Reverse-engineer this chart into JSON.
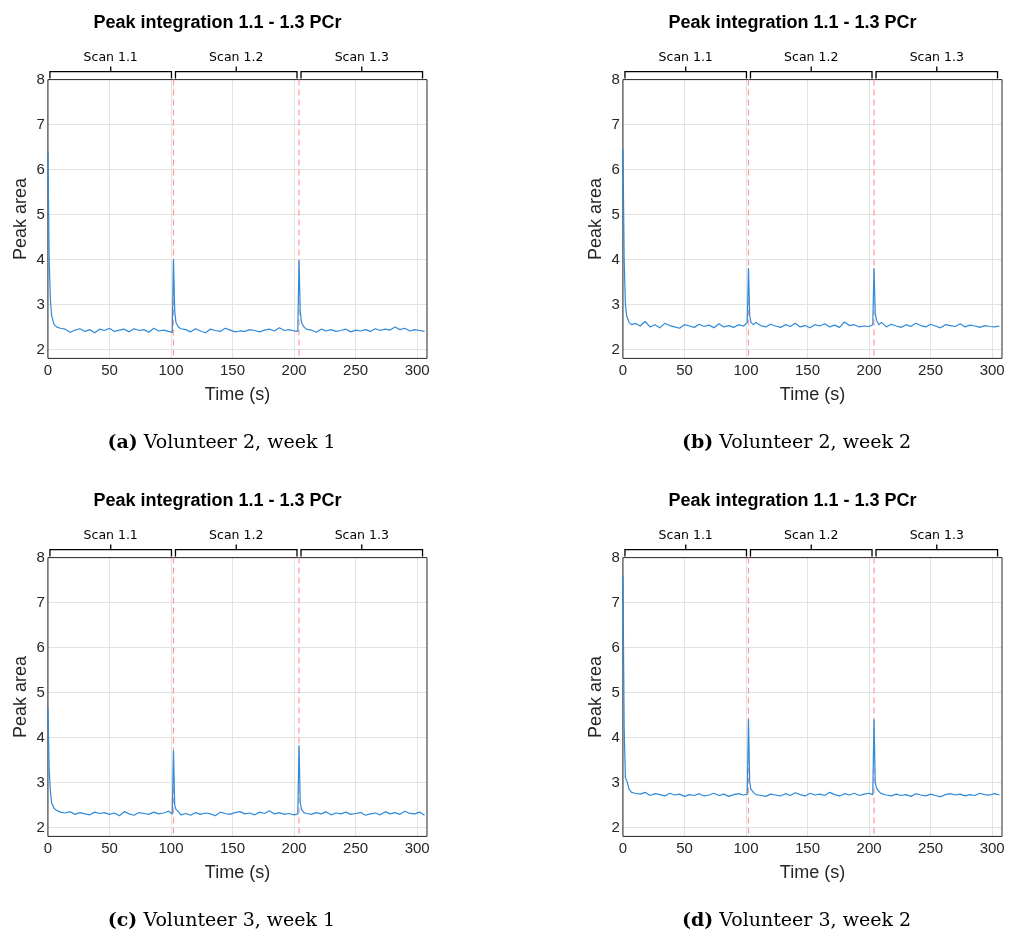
{
  "chart_data": [
    {
      "type": "line",
      "title": "Peak integration 1.1 - 1.3 PCr",
      "xlabel": "Time (s)",
      "ylabel": "Peak area",
      "xlim": [
        0,
        308
      ],
      "ylim": [
        1.8,
        8
      ],
      "xticks": [
        0,
        50,
        100,
        150,
        200,
        250,
        300
      ],
      "yticks": [
        2,
        3,
        4,
        5,
        6,
        7,
        8
      ],
      "grid": true,
      "x": [
        0,
        1,
        2,
        3,
        5,
        7,
        10,
        14,
        18,
        22,
        26,
        30,
        34,
        38,
        42,
        46,
        50,
        54,
        58,
        62,
        66,
        70,
        74,
        78,
        82,
        86,
        90,
        94,
        98,
        101,
        102,
        103,
        104,
        106,
        108,
        112,
        116,
        120,
        124,
        128,
        132,
        136,
        140,
        144,
        148,
        152,
        156,
        160,
        164,
        168,
        172,
        176,
        180,
        184,
        188,
        192,
        196,
        200,
        203,
        204,
        205,
        206,
        208,
        210,
        214,
        218,
        222,
        226,
        230,
        234,
        238,
        242,
        246,
        250,
        254,
        258,
        262,
        266,
        270,
        274,
        278,
        282,
        286,
        290,
        294,
        298,
        302,
        306
      ],
      "series": [
        {
          "color": "#2f8ad8",
          "values": [
            6.4,
            4.0,
            3.1,
            2.75,
            2.55,
            2.5,
            2.47,
            2.45,
            2.38,
            2.43,
            2.46,
            2.4,
            2.44,
            2.37,
            2.45,
            2.42,
            2.47,
            2.4,
            2.43,
            2.45,
            2.39,
            2.46,
            2.42,
            2.44,
            2.38,
            2.47,
            2.41,
            2.43,
            2.4,
            2.38,
            4.0,
            2.85,
            2.6,
            2.5,
            2.46,
            2.44,
            2.39,
            2.46,
            2.41,
            2.37,
            2.45,
            2.42,
            2.4,
            2.47,
            2.43,
            2.39,
            2.41,
            2.4,
            2.44,
            2.42,
            2.39,
            2.43,
            2.45,
            2.41,
            2.48,
            2.42,
            2.44,
            2.41,
            2.4,
            3.98,
            2.85,
            2.6,
            2.5,
            2.45,
            2.43,
            2.38,
            2.45,
            2.41,
            2.44,
            2.4,
            2.42,
            2.45,
            2.39,
            2.43,
            2.41,
            2.44,
            2.4,
            2.46,
            2.42,
            2.45,
            2.43,
            2.5,
            2.44,
            2.47,
            2.41,
            2.44,
            2.42,
            2.4
          ]
        }
      ],
      "ref_lines": [
        {
          "axis": "x",
          "value": 102,
          "color": "#ff9999",
          "line_style": "dashed"
        },
        {
          "axis": "x",
          "value": 204,
          "color": "#ff9999",
          "line_style": "dashed"
        }
      ],
      "annotations": [
        {
          "text": "Scan 1.1",
          "x": 51
        },
        {
          "text": "Scan 1.2",
          "x": 153
        },
        {
          "text": "Scan 1.3",
          "x": 255
        },
        "(a) Volunteer 2, week 1"
      ]
    },
    {
      "type": "line",
      "title": "Peak integration 1.1 - 1.3 PCr",
      "xlabel": "Time (s)",
      "ylabel": "Peak area",
      "xlim": [
        0,
        308
      ],
      "ylim": [
        1.8,
        8
      ],
      "xticks": [
        0,
        50,
        100,
        150,
        200,
        250,
        300
      ],
      "yticks": [
        2,
        3,
        4,
        5,
        6,
        7,
        8
      ],
      "grid": true,
      "x": [
        0,
        1,
        2,
        3,
        5,
        7,
        10,
        14,
        18,
        22,
        26,
        30,
        34,
        38,
        42,
        46,
        50,
        54,
        58,
        62,
        66,
        70,
        74,
        78,
        82,
        86,
        90,
        94,
        98,
        101,
        102,
        103,
        104,
        106,
        108,
        112,
        116,
        120,
        124,
        128,
        132,
        136,
        140,
        144,
        148,
        152,
        156,
        160,
        164,
        168,
        172,
        176,
        180,
        184,
        188,
        192,
        196,
        200,
        203,
        204,
        205,
        206,
        208,
        210,
        214,
        218,
        222,
        226,
        230,
        234,
        238,
        242,
        246,
        250,
        254,
        258,
        262,
        266,
        270,
        274,
        278,
        282,
        286,
        290,
        294,
        298,
        302,
        306
      ],
      "series": [
        {
          "color": "#2f8ad8",
          "values": [
            6.45,
            4.0,
            3.0,
            2.75,
            2.6,
            2.55,
            2.58,
            2.52,
            2.62,
            2.5,
            2.55,
            2.48,
            2.58,
            2.53,
            2.5,
            2.47,
            2.55,
            2.52,
            2.49,
            2.56,
            2.51,
            2.54,
            2.48,
            2.57,
            2.5,
            2.53,
            2.49,
            2.55,
            2.52,
            2.6,
            3.8,
            2.75,
            2.6,
            2.55,
            2.6,
            2.53,
            2.5,
            2.56,
            2.52,
            2.49,
            2.55,
            2.51,
            2.58,
            2.5,
            2.53,
            2.48,
            2.55,
            2.52,
            2.57,
            2.5,
            2.54,
            2.49,
            2.61,
            2.53,
            2.55,
            2.5,
            2.52,
            2.51,
            2.55,
            3.8,
            2.8,
            2.65,
            2.55,
            2.6,
            2.5,
            2.56,
            2.52,
            2.49,
            2.55,
            2.51,
            2.58,
            2.53,
            2.5,
            2.56,
            2.52,
            2.48,
            2.55,
            2.53,
            2.51,
            2.57,
            2.5,
            2.54,
            2.52,
            2.49,
            2.53,
            2.51,
            2.5,
            2.52
          ]
        }
      ],
      "ref_lines": [
        {
          "axis": "x",
          "value": 102,
          "color": "#ff9999",
          "line_style": "dashed"
        },
        {
          "axis": "x",
          "value": 204,
          "color": "#ff9999",
          "line_style": "dashed"
        }
      ],
      "annotations": [
        {
          "text": "Scan 1.1",
          "x": 51
        },
        {
          "text": "Scan 1.2",
          "x": 153
        },
        {
          "text": "Scan 1.3",
          "x": 255
        },
        "(b) Volunteer 2, week 2"
      ]
    },
    {
      "type": "line",
      "title": "Peak integration 1.1 - 1.3 PCr",
      "xlabel": "Time (s)",
      "ylabel": "Peak area",
      "xlim": [
        0,
        308
      ],
      "ylim": [
        1.8,
        8
      ],
      "xticks": [
        0,
        50,
        100,
        150,
        200,
        250,
        300
      ],
      "yticks": [
        2,
        3,
        4,
        5,
        6,
        7,
        8
      ],
      "grid": true,
      "x": [
        0,
        1,
        2,
        3,
        5,
        7,
        10,
        14,
        18,
        22,
        26,
        30,
        34,
        38,
        42,
        46,
        50,
        54,
        58,
        62,
        66,
        70,
        74,
        78,
        82,
        86,
        90,
        94,
        98,
        101,
        102,
        103,
        104,
        106,
        108,
        112,
        116,
        120,
        124,
        128,
        132,
        136,
        140,
        144,
        148,
        152,
        156,
        160,
        164,
        168,
        172,
        176,
        180,
        184,
        188,
        192,
        196,
        200,
        203,
        204,
        205,
        206,
        208,
        210,
        214,
        218,
        222,
        226,
        230,
        234,
        238,
        242,
        246,
        250,
        254,
        258,
        262,
        266,
        270,
        274,
        278,
        282,
        286,
        290,
        294,
        298,
        302,
        306
      ],
      "series": [
        {
          "color": "#2f8ad8",
          "values": [
            4.65,
            3.3,
            2.8,
            2.55,
            2.42,
            2.38,
            2.34,
            2.32,
            2.35,
            2.29,
            2.33,
            2.3,
            2.28,
            2.34,
            2.31,
            2.33,
            2.29,
            2.32,
            2.26,
            2.35,
            2.3,
            2.27,
            2.33,
            2.31,
            2.29,
            2.34,
            2.3,
            2.32,
            2.36,
            2.3,
            3.7,
            2.5,
            2.4,
            2.35,
            2.28,
            2.31,
            2.27,
            2.33,
            2.29,
            2.32,
            2.3,
            2.26,
            2.34,
            2.31,
            2.29,
            2.33,
            2.35,
            2.3,
            2.32,
            2.28,
            2.34,
            2.31,
            2.37,
            2.3,
            2.33,
            2.29,
            2.31,
            2.28,
            2.3,
            3.82,
            2.55,
            2.4,
            2.33,
            2.31,
            2.29,
            2.33,
            2.3,
            2.35,
            2.28,
            2.32,
            2.3,
            2.34,
            2.29,
            2.31,
            2.33,
            2.27,
            2.3,
            2.32,
            2.28,
            2.35,
            2.3,
            2.33,
            2.29,
            2.36,
            2.31,
            2.3,
            2.34,
            2.27
          ]
        }
      ],
      "ref_lines": [
        {
          "axis": "x",
          "value": 102,
          "color": "#ff9999",
          "line_style": "dashed"
        },
        {
          "axis": "x",
          "value": 204,
          "color": "#ff9999",
          "line_style": "dashed"
        }
      ],
      "annotations": [
        {
          "text": "Scan 1.1",
          "x": 51
        },
        {
          "text": "Scan 1.2",
          "x": 153
        },
        {
          "text": "Scan 1.3",
          "x": 255
        },
        "(c) Volunteer 3, week 1"
      ]
    },
    {
      "type": "line",
      "title": "Peak integration 1.1 - 1.3 PCr",
      "xlabel": "Time (s)",
      "ylabel": "Peak area",
      "xlim": [
        0,
        308
      ],
      "ylim": [
        1.8,
        8
      ],
      "xticks": [
        0,
        50,
        100,
        150,
        200,
        250,
        300
      ],
      "yticks": [
        2,
        3,
        4,
        5,
        6,
        7,
        8
      ],
      "grid": true,
      "x": [
        0,
        1,
        2,
        3,
        5,
        7,
        10,
        14,
        18,
        22,
        26,
        30,
        34,
        38,
        42,
        46,
        50,
        54,
        58,
        62,
        66,
        70,
        74,
        78,
        82,
        86,
        90,
        94,
        98,
        101,
        102,
        103,
        104,
        106,
        108,
        112,
        116,
        120,
        124,
        128,
        132,
        136,
        140,
        144,
        148,
        152,
        156,
        160,
        164,
        168,
        172,
        176,
        180,
        184,
        188,
        192,
        196,
        200,
        203,
        204,
        205,
        206,
        208,
        210,
        214,
        218,
        222,
        226,
        230,
        234,
        238,
        242,
        246,
        250,
        254,
        258,
        262,
        266,
        270,
        274,
        278,
        282,
        286,
        290,
        294,
        298,
        302,
        306
      ],
      "series": [
        {
          "color": "#2f8ad8",
          "values": [
            7.6,
            4.2,
            3.1,
            3.05,
            2.85,
            2.78,
            2.76,
            2.74,
            2.78,
            2.71,
            2.75,
            2.73,
            2.7,
            2.76,
            2.72,
            2.74,
            2.69,
            2.73,
            2.71,
            2.75,
            2.7,
            2.72,
            2.76,
            2.71,
            2.74,
            2.69,
            2.73,
            2.75,
            2.72,
            2.74,
            4.4,
            3.0,
            2.85,
            2.78,
            2.73,
            2.71,
            2.69,
            2.74,
            2.72,
            2.7,
            2.75,
            2.71,
            2.77,
            2.73,
            2.7,
            2.76,
            2.72,
            2.74,
            2.71,
            2.78,
            2.73,
            2.7,
            2.75,
            2.72,
            2.76,
            2.71,
            2.74,
            2.76,
            2.73,
            4.4,
            3.0,
            2.88,
            2.8,
            2.75,
            2.72,
            2.7,
            2.74,
            2.71,
            2.73,
            2.69,
            2.75,
            2.72,
            2.7,
            2.74,
            2.71,
            2.68,
            2.73,
            2.75,
            2.72,
            2.74,
            2.7,
            2.73,
            2.71,
            2.76,
            2.73,
            2.72,
            2.75,
            2.72
          ]
        }
      ],
      "ref_lines": [
        {
          "axis": "x",
          "value": 102,
          "color": "#ff9999",
          "line_style": "dashed"
        },
        {
          "axis": "x",
          "value": 204,
          "color": "#ff9999",
          "line_style": "dashed"
        }
      ],
      "annotations": [
        {
          "text": "Scan 1.1",
          "x": 51
        },
        {
          "text": "Scan 1.2",
          "x": 153
        },
        {
          "text": "Scan 1.3",
          "x": 255
        },
        "(d) Volunteer 3, week 2"
      ]
    }
  ]
}
